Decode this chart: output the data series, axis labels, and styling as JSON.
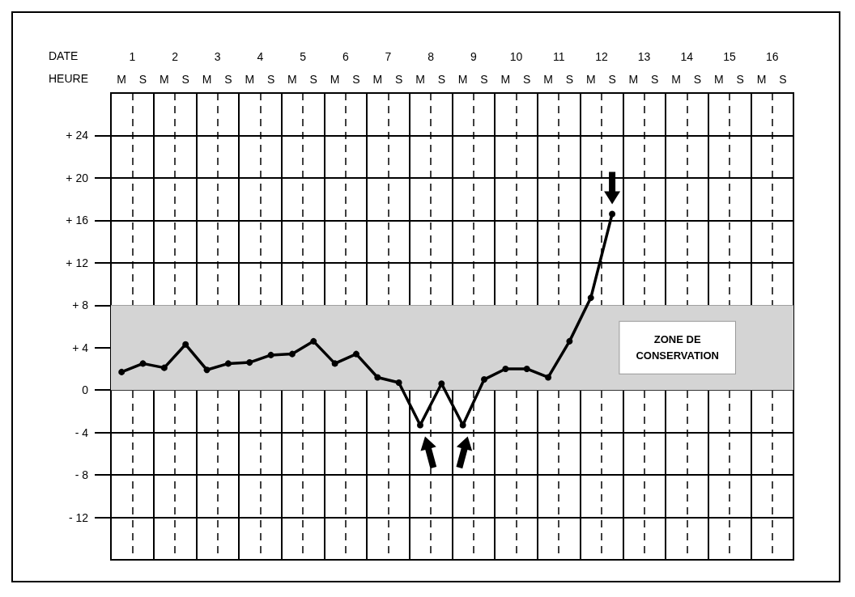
{
  "chart_data": {
    "type": "line",
    "xlabel": "HEURE",
    "x2label": "DATE",
    "categories": [
      "M",
      "S",
      "M",
      "S",
      "M",
      "S",
      "M",
      "S",
      "M",
      "S",
      "M",
      "S",
      "M",
      "S",
      "M",
      "S",
      "M",
      "S",
      "M",
      "S",
      "M",
      "S",
      "M",
      "S",
      "M",
      "S",
      "M",
      "S",
      "M",
      "S",
      "M",
      "S"
    ],
    "x2lim": [
      0.5,
      16.5
    ],
    "x2ticks": [
      1,
      2,
      3,
      4,
      5,
      6,
      7,
      8,
      9,
      10,
      11,
      12,
      13,
      14,
      15,
      16
    ],
    "series": [
      {
        "color": "#000000",
        "values": [
          1.7,
          2.5,
          2.1,
          4.3,
          1.9,
          2.5,
          2.6,
          3.3,
          3.4,
          4.6,
          2.5,
          3.4,
          1.2,
          0.7,
          -3.3,
          0.6,
          -3.3,
          1.0,
          2.0,
          2.0,
          1.2,
          4.6,
          8.7,
          16.6,
          null,
          null,
          null,
          null,
          null,
          null,
          null,
          null
        ]
      }
    ],
    "ylim": [
      -16,
      28
    ],
    "yticks": [
      {
        "value": -12,
        "label": "- 12"
      },
      {
        "value": -8,
        "label": "- 8"
      },
      {
        "value": -4,
        "label": "- 4"
      },
      0,
      {
        "value": 4,
        "label": "+ 4"
      },
      {
        "value": 8,
        "label": "+ 8"
      },
      {
        "value": 12,
        "label": "+ 12"
      },
      {
        "value": 16,
        "label": "+ 16"
      },
      {
        "value": 20,
        "label": "+ 20"
      },
      {
        "value": 24,
        "label": "+ 24"
      }
    ],
    "bands": [
      {
        "axis": "y",
        "from": 0,
        "to": 8,
        "label": "ZONE DE\nCONSERVATION",
        "color": "#d4d4d4"
      }
    ],
    "grid": true,
    "marker": "circle",
    "line_style": "solid"
  }
}
